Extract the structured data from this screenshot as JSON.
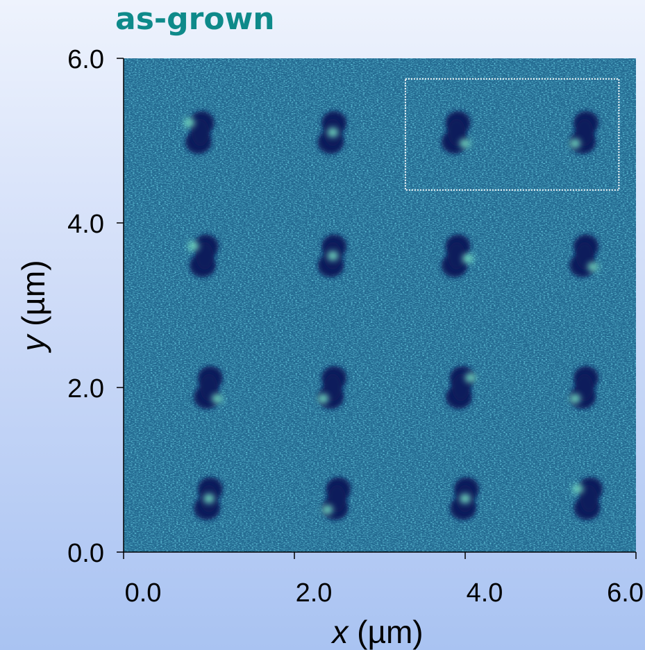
{
  "chart_data": {
    "type": "heatmap",
    "title": "as-grown",
    "xlabel": {
      "var": "x",
      "unit": " (µm)"
    },
    "ylabel": {
      "var": "y",
      "unit": " (µm)"
    },
    "xlim": [
      0,
      6.0
    ],
    "ylim": [
      0,
      6.0
    ],
    "xticks": [
      {
        "value": 0,
        "label": "0.0"
      },
      {
        "value": 2,
        "label": "2.0"
      },
      {
        "value": 4,
        "label": "4.0"
      },
      {
        "value": 6,
        "label": "6.0"
      }
    ],
    "yticks": [
      {
        "value": 0,
        "label": "0.0"
      },
      {
        "value": 2,
        "label": "2.0"
      },
      {
        "value": 4,
        "label": "4.0"
      },
      {
        "value": 6,
        "label": "6.0"
      }
    ],
    "colors": {
      "background": "#246b92",
      "feature_dark": "#0a1a5c",
      "feature_bright": "#78e3c6",
      "title": "#0e8a8a"
    },
    "features": [
      {
        "x": 0.9,
        "y": 5.1,
        "bright": "left-top"
      },
      {
        "x": 2.45,
        "y": 5.1,
        "bright": "center"
      },
      {
        "x": 3.9,
        "y": 5.1,
        "bright": "right-bottom"
      },
      {
        "x": 5.4,
        "y": 5.1,
        "bright": "left-bottom"
      },
      {
        "x": 0.95,
        "y": 3.6,
        "bright": "left-top"
      },
      {
        "x": 2.45,
        "y": 3.6,
        "bright": "center"
      },
      {
        "x": 3.9,
        "y": 3.6,
        "bright": "right"
      },
      {
        "x": 5.4,
        "y": 3.6,
        "bright": "right-bottom"
      },
      {
        "x": 1.0,
        "y": 2.0,
        "bright": "right-bottom"
      },
      {
        "x": 2.45,
        "y": 2.0,
        "bright": "left-bottom"
      },
      {
        "x": 3.95,
        "y": 2.0,
        "bright": "right-top"
      },
      {
        "x": 5.4,
        "y": 2.0,
        "bright": "left-bottom"
      },
      {
        "x": 1.0,
        "y": 0.65,
        "bright": "center"
      },
      {
        "x": 2.5,
        "y": 0.65,
        "bright": "left-bottom"
      },
      {
        "x": 4.0,
        "y": 0.65,
        "bright": "center"
      },
      {
        "x": 5.45,
        "y": 0.65,
        "bright": "left-top"
      }
    ],
    "highlight_box": {
      "x0": 3.3,
      "x1": 5.8,
      "y0": 4.4,
      "y1": 5.75
    }
  }
}
